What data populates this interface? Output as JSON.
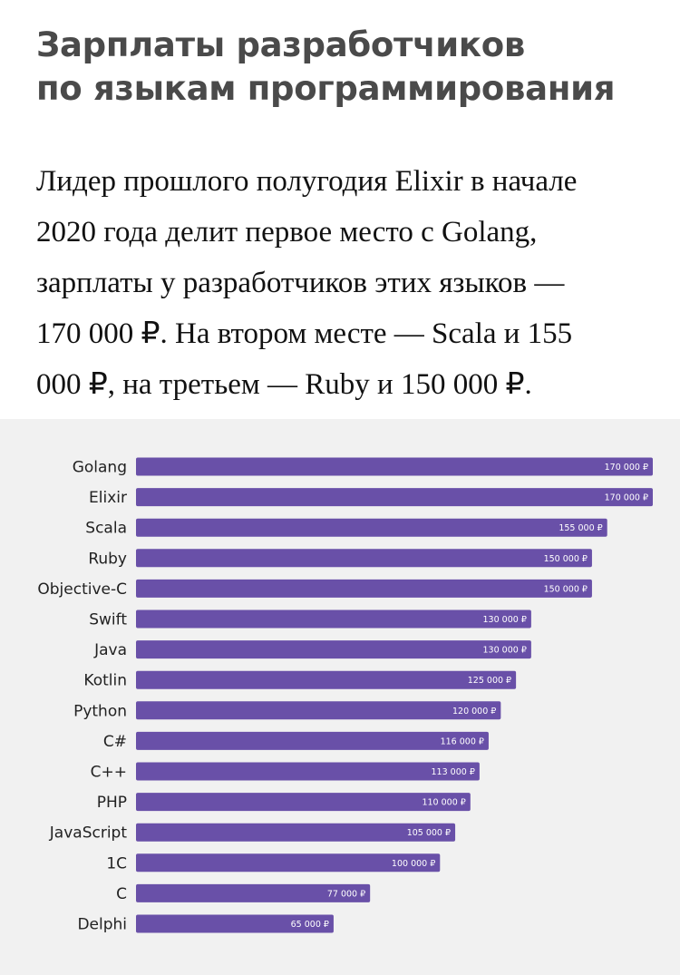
{
  "header": {
    "title_line1": "Зарплаты разработчиков",
    "title_line2": "по языкам программирования"
  },
  "lead": {
    "line1": "Лидер прошлого полугодия Elixir в начале",
    "line2": "2020 года делит первое место с Golang,",
    "line3": "зарплаты у разработчиков этих языков —",
    "line4": "170 000 ₽. На втором месте — Scala и 155",
    "line5": "000 ₽, на третьем — Ruby и 150 000 ₽."
  },
  "chart_data": {
    "type": "bar",
    "orientation": "horizontal",
    "categories": [
      "Golang",
      "Elixir",
      "Scala",
      "Ruby",
      "Objective-C",
      "Swift",
      "Java",
      "Kotlin",
      "Python",
      "C#",
      "C++",
      "PHP",
      "JavaScript",
      "1C",
      "C",
      "Delphi"
    ],
    "values": [
      170000,
      170000,
      155000,
      150000,
      150000,
      130000,
      130000,
      125000,
      120000,
      116000,
      113000,
      110000,
      105000,
      100000,
      77000,
      65000
    ],
    "value_labels": [
      "170 000 ₽",
      "170 000 ₽",
      "155 000 ₽",
      "150 000 ₽",
      "150 000 ₽",
      "130 000 ₽",
      "130 000 ₽",
      "125 000 ₽",
      "120 000 ₽",
      "116 000 ₽",
      "113 000 ₽",
      "110 000 ₽",
      "105 000 ₽",
      "100 000 ₽",
      "77 000 ₽",
      "65 000 ₽"
    ],
    "xlim": [
      0,
      170000
    ],
    "grid": false,
    "legend": "none",
    "bar_color": "#6950a8",
    "background_color": "#f1f1f1"
  }
}
